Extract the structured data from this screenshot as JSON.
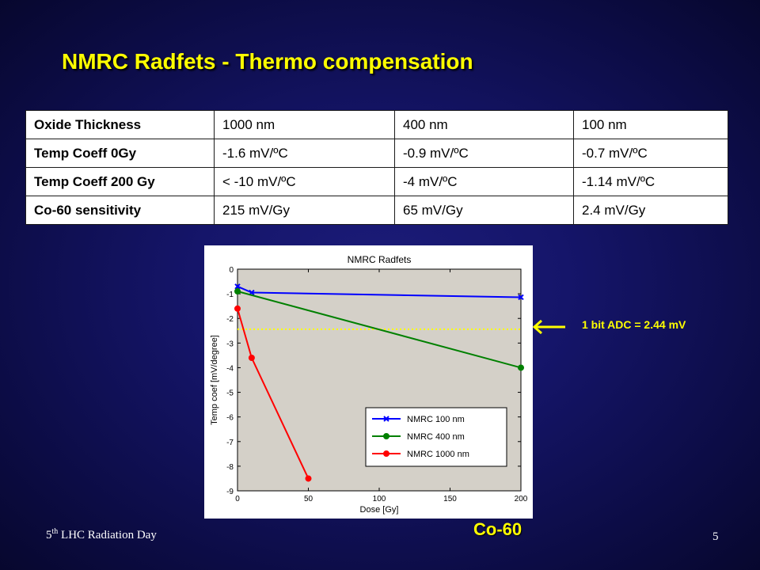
{
  "slide": {
    "title": "NMRC Radfets - Thermo compensation",
    "footer_prefix": "5",
    "footer_sup": "th",
    "footer_text": " LHC Radiation Day",
    "page_number": "5",
    "annotation": "1 bit ADC = 2.44 mV",
    "source_label": "Co-60"
  },
  "table": {
    "rows": [
      {
        "header": "Oxide Thickness",
        "cells": [
          "1000 nm",
          "400 nm",
          "100 nm"
        ]
      },
      {
        "header": "Temp Coeff 0Gy",
        "cells": [
          "-1.6 mV/ºC",
          "-0.9 mV/ºC",
          "-0.7 mV/ºC"
        ]
      },
      {
        "header": "Temp Coeff 200 Gy",
        "cells": [
          "< -10 mV/ºC",
          "-4 mV/ºC",
          "-1.14 mV/ºC"
        ]
      },
      {
        "header": "Co-60 sensitivity",
        "cells": [
          "215 mV/Gy",
          "65 mV/Gy",
          "2.4 mV/Gy"
        ]
      }
    ]
  },
  "chart_data": {
    "type": "line",
    "title": "NMRC Radfets",
    "xlabel": "Dose [Gy]",
    "ylabel": "Temp coef [mV/degree]",
    "xlim": [
      0,
      200
    ],
    "ylim": [
      -9,
      0
    ],
    "xticks": [
      0,
      50,
      100,
      150,
      200
    ],
    "yticks": [
      0,
      -1,
      -2,
      -3,
      -4,
      -5,
      -6,
      -7,
      -8,
      -9
    ],
    "grid": false,
    "legend_position": "lower-right",
    "plot_background": "#d4d0c8",
    "reference_line": {
      "y": -2.44,
      "color": "#ffff00",
      "style": "dotted"
    },
    "series": [
      {
        "name": "NMRC 100 nm",
        "color": "#0000ff",
        "marker": "x",
        "x": [
          0,
          10,
          200
        ],
        "y": [
          -0.7,
          -0.95,
          -1.14
        ]
      },
      {
        "name": "NMRC 400 nm",
        "color": "#008000",
        "marker": "o",
        "x": [
          0,
          200
        ],
        "y": [
          -0.9,
          -4.0
        ]
      },
      {
        "name": "NMRC 1000 nm",
        "color": "#ff0000",
        "marker": "o",
        "x": [
          0,
          10,
          50
        ],
        "y": [
          -1.6,
          -3.6,
          -8.5
        ]
      }
    ]
  }
}
